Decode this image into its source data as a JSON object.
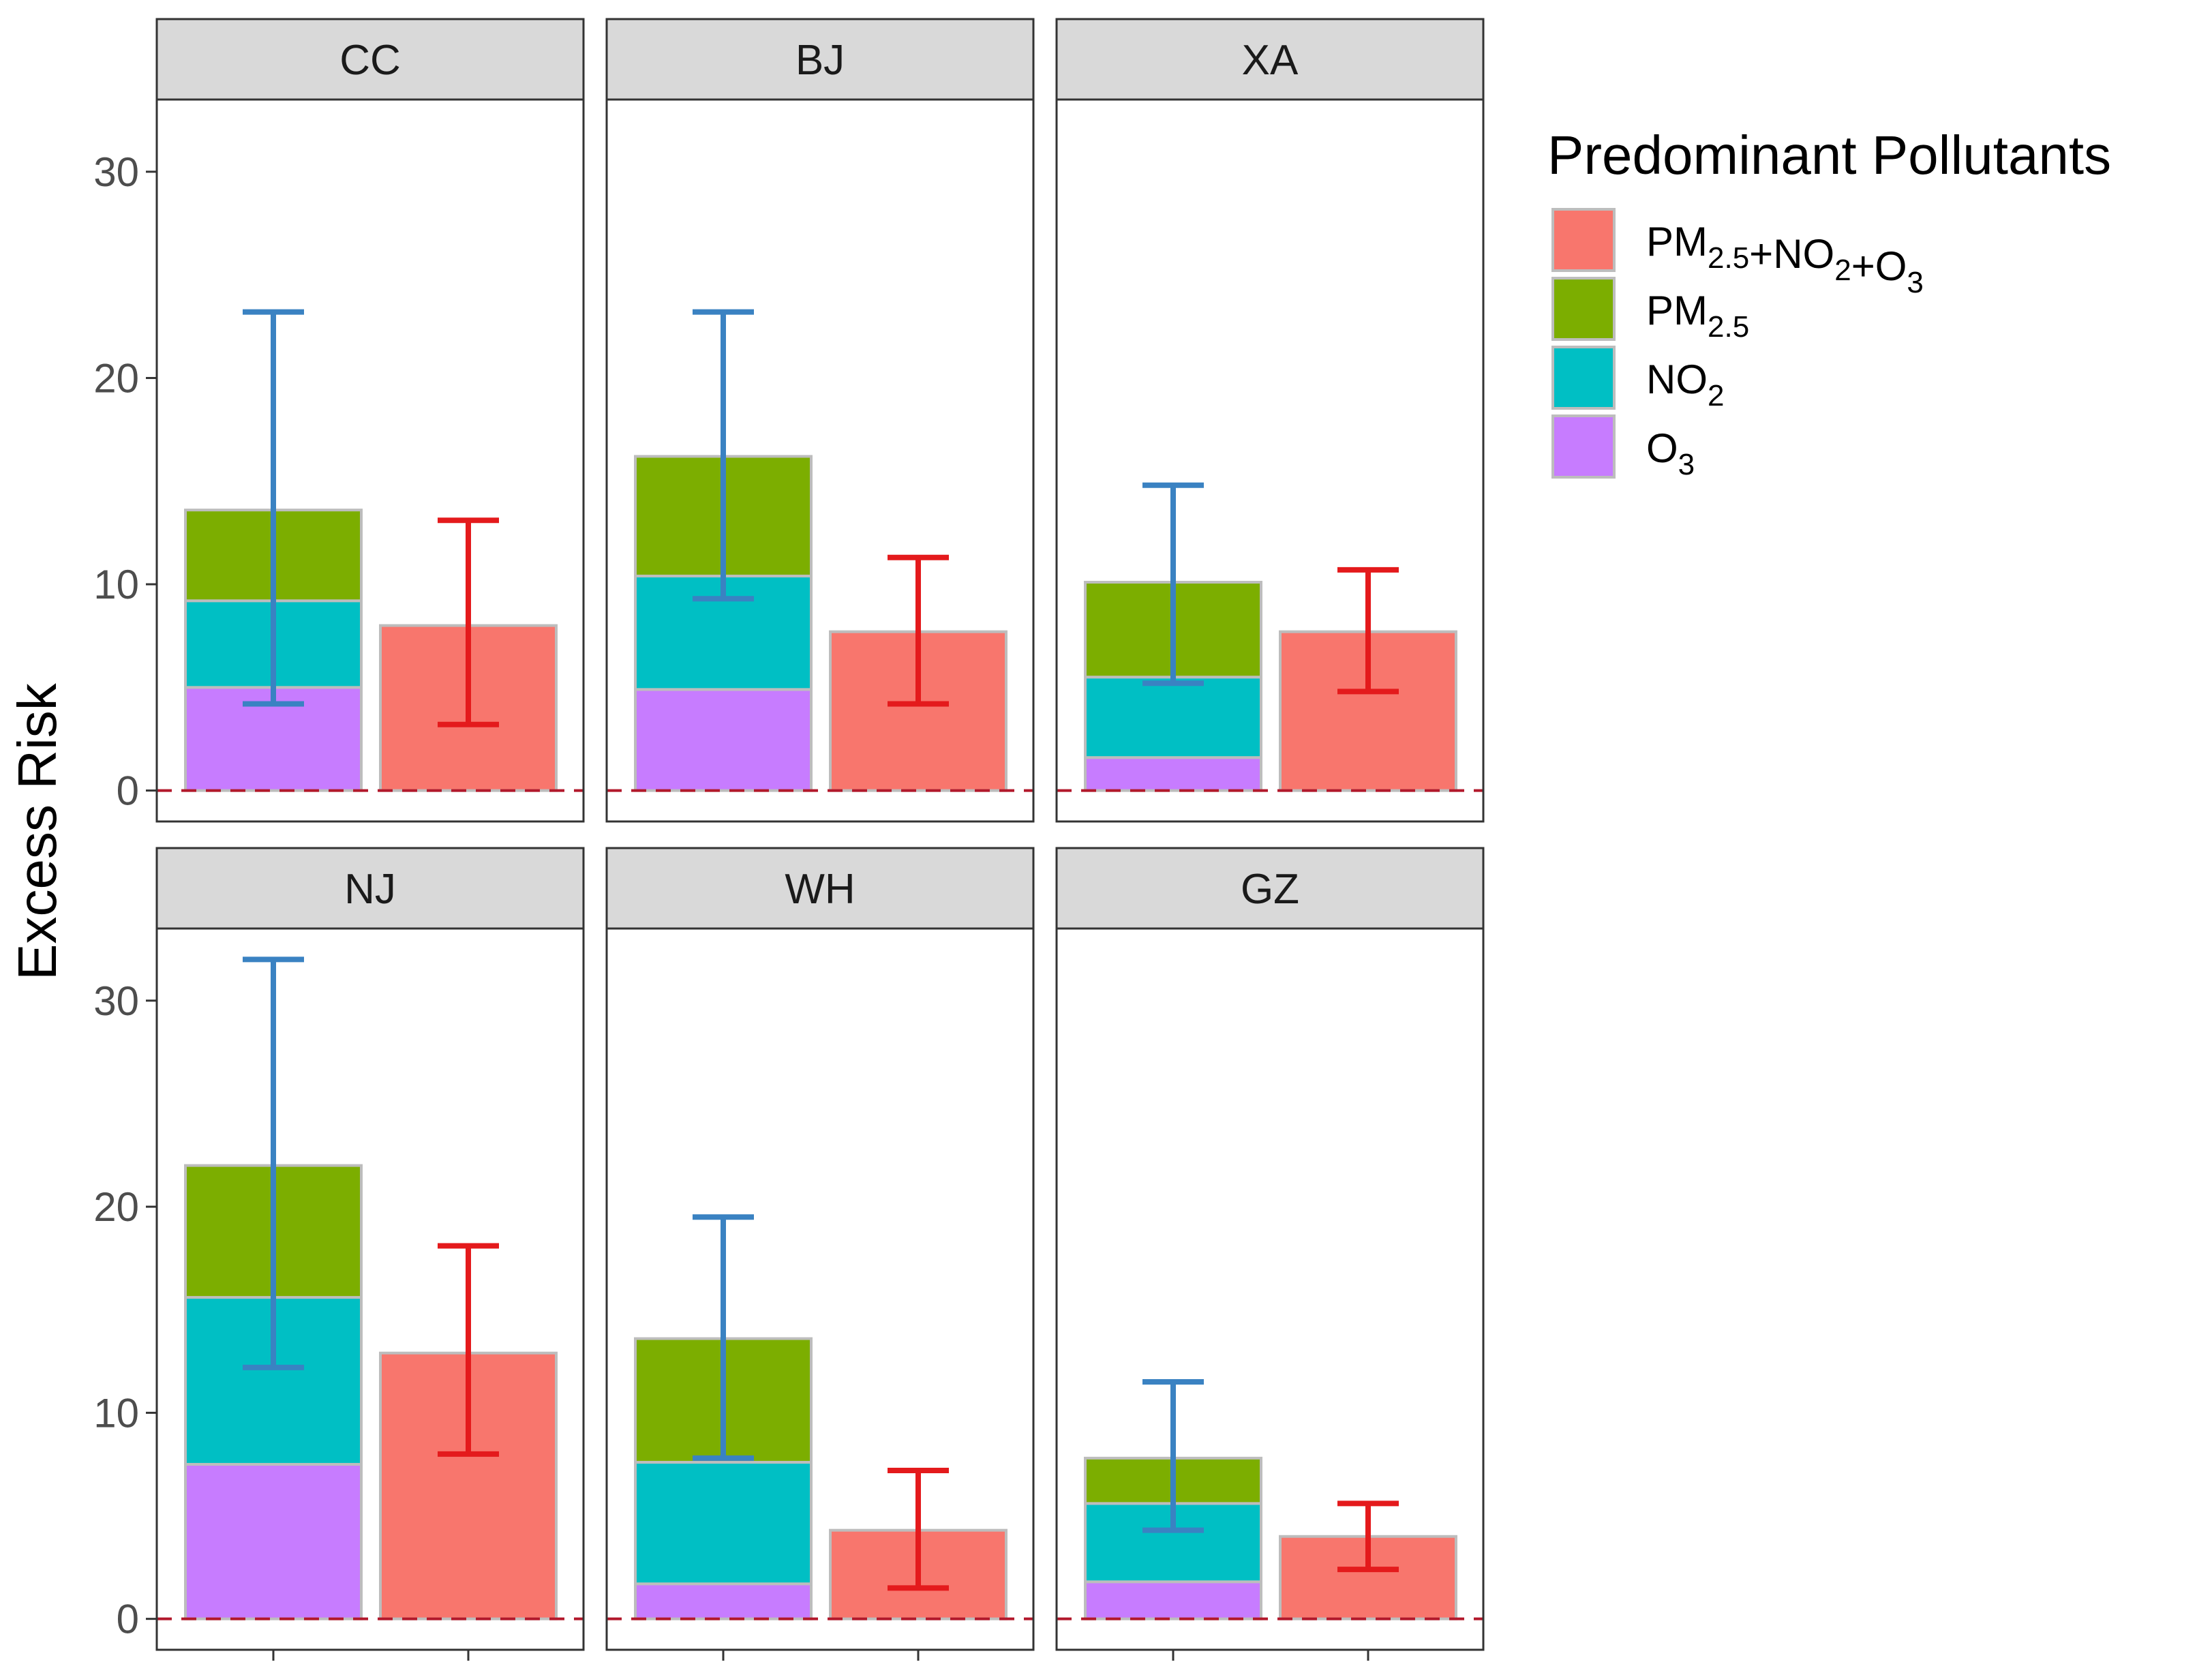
{
  "chart_data": {
    "type": "bar",
    "subtype": "faceted stacked bar with error bars",
    "ylabel": "Excess Risk",
    "ylim": [
      -1.5,
      33.5
    ],
    "yticks": [
      0,
      10,
      20,
      30
    ],
    "reference_line": {
      "y": 0,
      "style": "dashed",
      "color": "#b2182b"
    },
    "legend": {
      "title": "Predominant Pollutants",
      "position": "right",
      "entries": [
        {
          "key": "combined",
          "base": "PM",
          "parts": [
            {
              "t": "PM",
              "sub": "2.5"
            },
            {
              "t": "+NO",
              "sub": "2"
            },
            {
              "t": "+O",
              "sub": "3"
            }
          ],
          "color": "#F8766D"
        },
        {
          "key": "pm25",
          "parts": [
            {
              "t": "PM",
              "sub": "2.5"
            }
          ],
          "color": "#7CAE00"
        },
        {
          "key": "no2",
          "parts": [
            {
              "t": "NO",
              "sub": "2"
            }
          ],
          "color": "#00BFC4"
        },
        {
          "key": "o3",
          "parts": [
            {
              "t": "O",
              "sub": "3"
            }
          ],
          "color": "#C77CFF"
        }
      ]
    },
    "error_bar_colors": {
      "stacked": "#3A82C2",
      "combined": "#E41A1C"
    },
    "facets": [
      {
        "name": "CC",
        "stack": {
          "o3": 5.0,
          "no2": 4.2,
          "pm25": 4.4
        },
        "stack_ci": [
          4.2,
          23.2
        ],
        "combined": 8.0,
        "combined_ci": [
          3.2,
          13.1
        ]
      },
      {
        "name": "BJ",
        "stack": {
          "o3": 4.9,
          "no2": 5.5,
          "pm25": 5.8
        },
        "stack_ci": [
          9.3,
          23.2
        ],
        "combined": 7.7,
        "combined_ci": [
          4.2,
          11.3
        ]
      },
      {
        "name": "XA",
        "stack": {
          "o3": 1.6,
          "no2": 3.9,
          "pm25": 4.6
        },
        "stack_ci": [
          5.2,
          14.8
        ],
        "combined": 7.7,
        "combined_ci": [
          4.8,
          10.7
        ]
      },
      {
        "name": "NJ",
        "stack": {
          "o3": 7.5,
          "no2": 8.1,
          "pm25": 6.4
        },
        "stack_ci": [
          12.2,
          32.0
        ],
        "combined": 12.9,
        "combined_ci": [
          8.0,
          18.1
        ]
      },
      {
        "name": "WH",
        "stack": {
          "o3": 1.7,
          "no2": 5.9,
          "pm25": 6.0
        },
        "stack_ci": [
          7.8,
          19.5
        ],
        "combined": 4.3,
        "combined_ci": [
          1.5,
          7.2
        ]
      },
      {
        "name": "GZ",
        "stack": {
          "o3": 1.8,
          "no2": 3.8,
          "pm25": 2.2
        },
        "stack_ci": [
          4.3,
          11.5
        ],
        "combined": 4.0,
        "combined_ci": [
          2.4,
          5.6
        ]
      }
    ]
  }
}
